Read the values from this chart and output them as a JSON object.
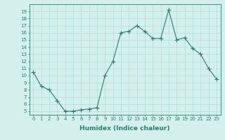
{
  "x": [
    0,
    1,
    2,
    3,
    4,
    5,
    6,
    7,
    8,
    9,
    10,
    11,
    12,
    13,
    14,
    15,
    16,
    17,
    18,
    19,
    20,
    21,
    22,
    23
  ],
  "y": [
    10.5,
    8.5,
    8.0,
    6.5,
    5.0,
    5.0,
    5.2,
    5.3,
    5.5,
    10.0,
    12.0,
    16.0,
    16.2,
    17.0,
    16.2,
    15.2,
    15.2,
    19.2,
    15.0,
    15.3,
    13.8,
    13.0,
    11.0,
    9.5
  ],
  "line_color": "#2d7d6e",
  "marker": "+",
  "marker_size": 4,
  "xlabel": "Humidex (Indice chaleur)",
  "xlim": [
    -0.5,
    23.5
  ],
  "ylim": [
    4.5,
    20
  ],
  "yticks": [
    5,
    6,
    7,
    8,
    9,
    10,
    11,
    12,
    13,
    14,
    15,
    16,
    17,
    18,
    19
  ],
  "xticks": [
    0,
    1,
    2,
    3,
    4,
    5,
    6,
    7,
    8,
    9,
    10,
    11,
    12,
    13,
    14,
    15,
    16,
    17,
    18,
    19,
    20,
    21,
    22,
    23
  ],
  "xtick_labels": [
    "0",
    "1",
    "2",
    "3",
    "4",
    "5",
    "6",
    "7",
    "8",
    "9",
    "10",
    "11",
    "12",
    "13",
    "14",
    "15",
    "16",
    "17",
    "18",
    "19",
    "20",
    "21",
    "22",
    "23"
  ],
  "background_color": "#d4f0ec",
  "grid_color": "#b0ddd8"
}
